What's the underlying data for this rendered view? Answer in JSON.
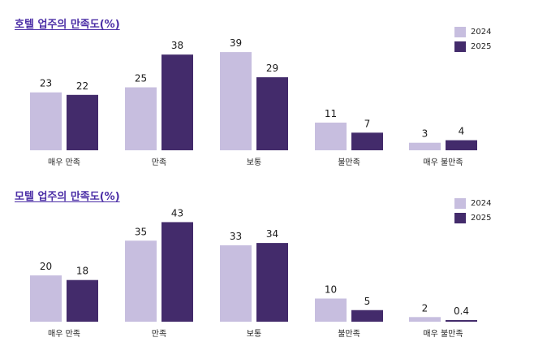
{
  "colors": {
    "series_2024": "#c7bedf",
    "series_2025": "#432b6b",
    "title": "#4b2ea6"
  },
  "chart_data": [
    {
      "type": "bar",
      "title": "호텔 업주의 만족도(%)",
      "categories": [
        "매우 만족",
        "만족",
        "보통",
        "불만족",
        "매우 불만족"
      ],
      "series": [
        {
          "name": "2024",
          "values": [
            23,
            25,
            39,
            11,
            3
          ]
        },
        {
          "name": "2025",
          "values": [
            22,
            38,
            29,
            7,
            4
          ]
        }
      ],
      "ylim": [
        0,
        40
      ],
      "grid": false,
      "legend": "top-right",
      "xlabel": "",
      "ylabel": ""
    },
    {
      "type": "bar",
      "title": "모텔 업주의 만족도(%)",
      "categories": [
        "매우 만족",
        "만족",
        "보통",
        "불만족",
        "매우 불만족"
      ],
      "series": [
        {
          "name": "2024",
          "values": [
            20,
            35,
            33,
            10,
            2
          ]
        },
        {
          "name": "2025",
          "values": [
            18,
            43,
            34,
            5,
            0.4
          ]
        }
      ],
      "ylim": [
        0,
        45
      ],
      "grid": false,
      "legend": "top-right",
      "xlabel": "",
      "ylabel": ""
    }
  ]
}
